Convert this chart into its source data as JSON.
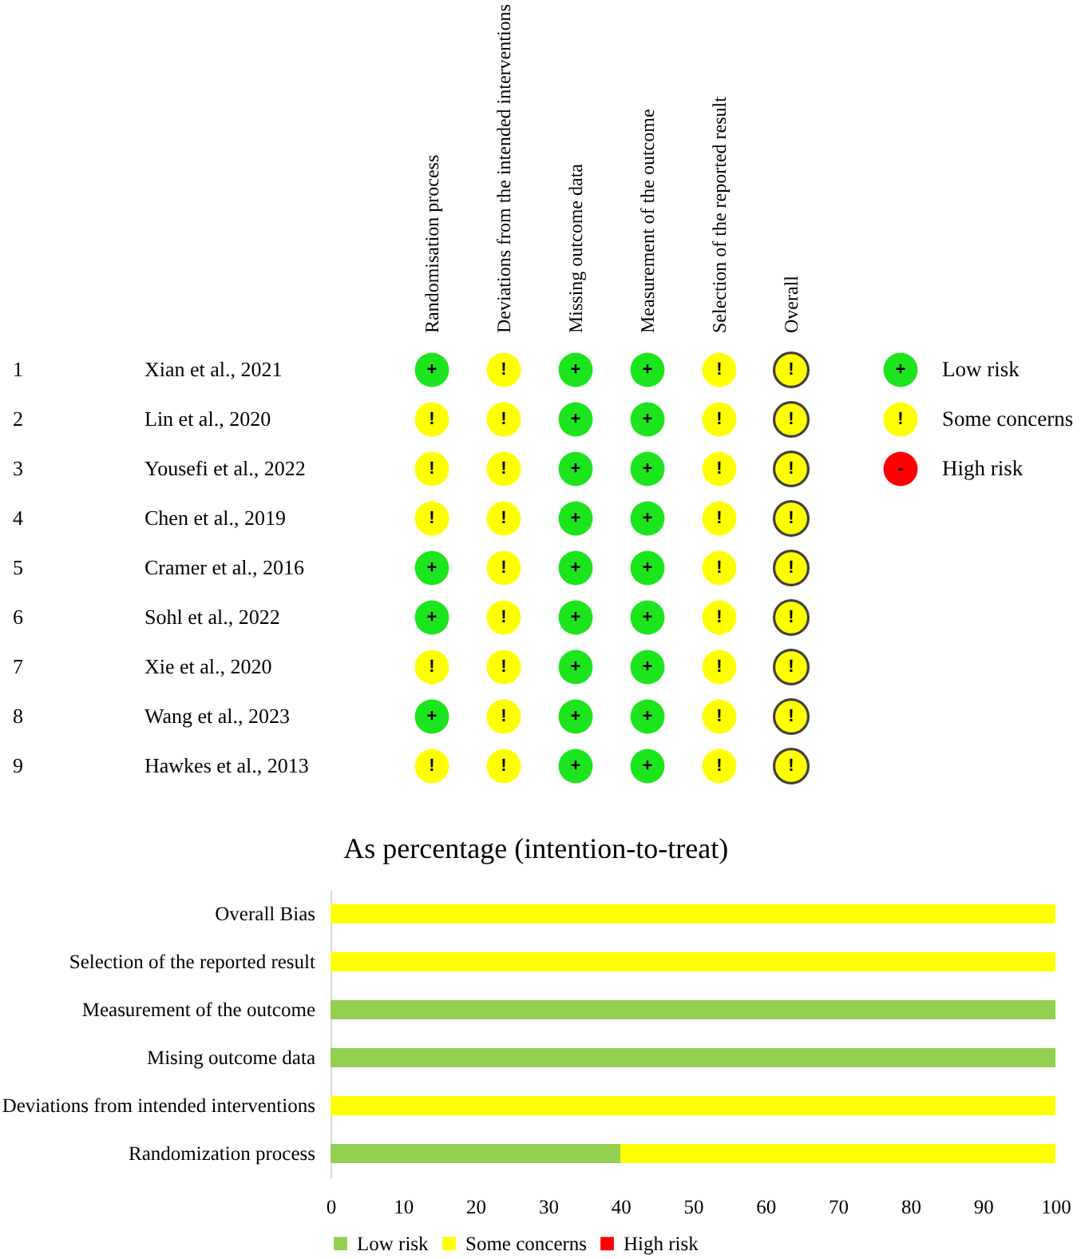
{
  "chart_data": [
    {
      "type": "heatmap",
      "categories": [
        "Randomisation process",
        "Deviations from the intended interventions",
        "Missing outcome data",
        "Measurement of the outcome",
        "Selection of the reported result",
        "Overall"
      ],
      "y_categories": [
        "Xian et al., 2021",
        "Lin et al., 2020",
        "Yousefi et al., 2022",
        "Chen et al., 2019",
        "Cramer et al., 2016",
        "Sohl et al., 2022",
        "Xie et al., 2020",
        "Wang et al., 2023",
        "Hawkes et al., 2013"
      ],
      "y2_categories": [
        "1",
        "2",
        "3",
        "4",
        "5",
        "6",
        "7",
        "8",
        "9"
      ],
      "cells": [
        [
          "+",
          "!",
          "+",
          "+",
          "!",
          "!"
        ],
        [
          "!",
          "!",
          "+",
          "+",
          "!",
          "!"
        ],
        [
          "!",
          "!",
          "+",
          "+",
          "!",
          "!"
        ],
        [
          "!",
          "!",
          "+",
          "+",
          "!",
          "!"
        ],
        [
          "+",
          "!",
          "+",
          "+",
          "!",
          "!"
        ],
        [
          "+",
          "!",
          "+",
          "+",
          "!",
          "!"
        ],
        [
          "!",
          "!",
          "+",
          "+",
          "!",
          "!"
        ],
        [
          "+",
          "!",
          "+",
          "+",
          "!",
          "!"
        ],
        [
          "!",
          "!",
          "+",
          "+",
          "!",
          "!"
        ]
      ],
      "cticks": [
        {
          "value": "+",
          "label": "Low risk"
        },
        {
          "value": "!",
          "label": "Some concerns"
        },
        {
          "value": "-",
          "label": "High risk"
        }
      ],
      "colors": [
        "#1de51d",
        "#ffff00",
        "#ff0000"
      ]
    },
    {
      "type": "bar",
      "orientation": "horizontal",
      "stacked": true,
      "title": "As percentage (intention-to-treat)",
      "categories": [
        "Overall Bias",
        "Selection of the reported result",
        "Measurement of the outcome",
        "Mising outcome data",
        "Deviations from intended interventions",
        "Randomization process"
      ],
      "series": [
        {
          "name": "Low risk",
          "color": "#92d050",
          "values": [
            0,
            0,
            100,
            100,
            0,
            40
          ]
        },
        {
          "name": "Some concerns",
          "color": "#ffff00",
          "values": [
            100,
            100,
            0,
            0,
            100,
            60
          ]
        },
        {
          "name": "High risk",
          "color": "#ff0000",
          "values": [
            0,
            0,
            0,
            0,
            0,
            0
          ]
        }
      ],
      "xlim": [
        0,
        100
      ],
      "xticks": [
        0,
        10,
        20,
        30,
        40,
        50,
        60,
        70,
        80,
        90,
        100
      ],
      "grid": false,
      "legend": "bottom"
    }
  ]
}
